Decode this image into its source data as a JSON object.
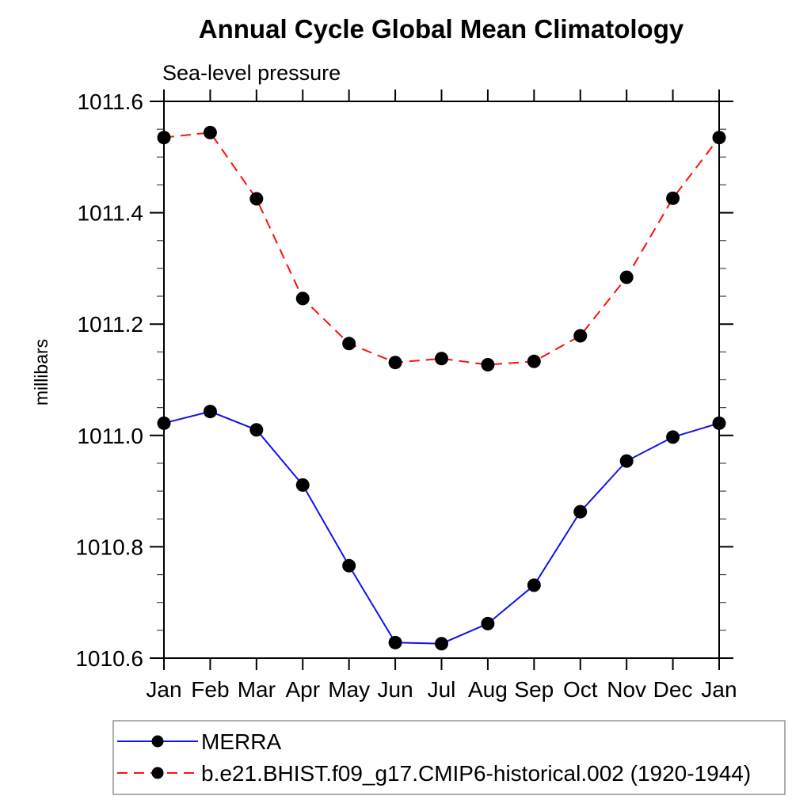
{
  "title": "Annual Cycle Global Mean Climatology",
  "subtitle": "Sea-level pressure",
  "ylabel": "millibars",
  "chart_data": {
    "type": "line",
    "categories": [
      "Jan",
      "Feb",
      "Mar",
      "Apr",
      "May",
      "Jun",
      "Jul",
      "Aug",
      "Sep",
      "Oct",
      "Nov",
      "Dec",
      "Jan"
    ],
    "series": [
      {
        "name": "MERRA",
        "color": "#1212ee",
        "line_style": "solid",
        "marker": "filled-circle",
        "marker_color": "#000000",
        "values": [
          1011.022,
          1011.043,
          1011.01,
          1010.911,
          1010.766,
          1010.628,
          1010.626,
          1010.662,
          1010.731,
          1010.863,
          1010.954,
          1010.997,
          1011.022
        ]
      },
      {
        "name": "b.e21.BHIST.f09_g17.CMIP6-historical.002 (1920-1944)",
        "color": "#fb100d",
        "line_style": "dashed",
        "marker": "filled-circle",
        "marker_color": "#000000",
        "values": [
          1011.535,
          1011.544,
          1011.425,
          1011.246,
          1011.165,
          1011.131,
          1011.138,
          1011.127,
          1011.133,
          1011.179,
          1011.284,
          1011.426,
          1011.535
        ]
      }
    ],
    "xlabel": "",
    "ylim": [
      1010.6,
      1011.6
    ],
    "ytick_major": 0.2,
    "ytick_minor": 0.05,
    "ytick_labels": [
      "1010.6",
      "1010.8",
      "1011.0",
      "1011.2",
      "1011.4",
      "1011.6"
    ],
    "grid": false,
    "tick_direction": "out",
    "legend_position": "bottom-left-box"
  },
  "legend": {
    "items": [
      {
        "label": "MERRA"
      },
      {
        "label": "b.e21.BHIST.f09_g17.CMIP6-historical.002 (1920-1944)"
      }
    ]
  }
}
